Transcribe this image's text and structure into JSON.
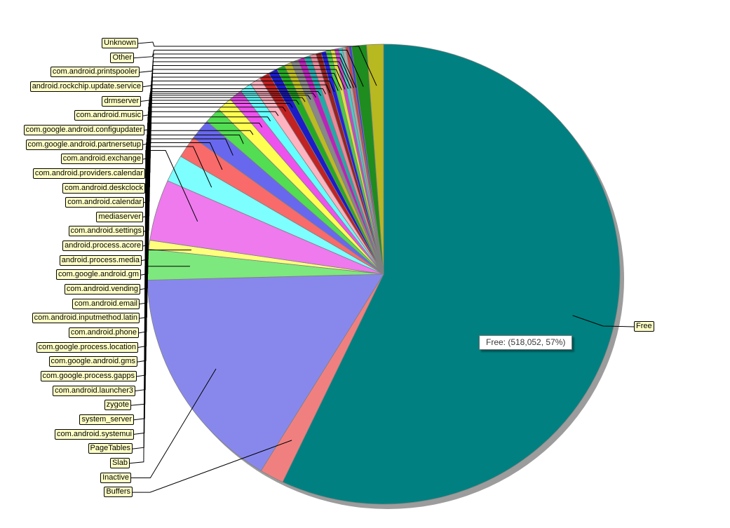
{
  "page": {
    "background": "#ffffff"
  },
  "chart_data": {
    "type": "pie",
    "title": "",
    "direction": "clockwise",
    "start_angle_deg": 0,
    "legend_position": "left-callouts-with-leader-lines",
    "pct_estimated_from_pixels": true,
    "tooltip_text": "Free: (518,052, 57%)",
    "free_value_display": "518,052",
    "free_pct_display": "57%",
    "colors": {
      "callout_bg": "#ffffc6",
      "callout_border": "#000000",
      "leader_line": "#000000",
      "slice_border": "#808080",
      "shadow": "#9c9c9c",
      "tooltip_bg": "#ffffff",
      "tooltip_border": "#707070",
      "background": "#ffffff"
    },
    "slices": [
      {
        "label": "Free",
        "pct": 57.0,
        "color": "#008080",
        "callout_side": "right"
      },
      {
        "label": "Buffers",
        "pct": 1.65,
        "color": "#f08080",
        "callout_side": "left"
      },
      {
        "label": "Inactive",
        "pct": 15.9,
        "color": "#8888ec",
        "callout_side": "left"
      },
      {
        "label": "Slab",
        "pct": 2.15,
        "color": "#7de87d",
        "callout_side": "left"
      },
      {
        "label": "PageTables",
        "pct": 0.62,
        "color": "#ffff7d",
        "callout_side": "left"
      },
      {
        "label": "com.android.systemui",
        "pct": 4.3,
        "color": "#ee7aee",
        "callout_side": "left"
      },
      {
        "label": "system_server",
        "pct": 1.9,
        "color": "#7dffff",
        "callout_side": "left"
      },
      {
        "label": "zygote",
        "pct": 1.55,
        "color": "#f96a6a",
        "callout_side": "left"
      },
      {
        "label": "com.android.launcher3",
        "pct": 1.45,
        "color": "#6868ee",
        "callout_side": "left"
      },
      {
        "label": "com.google.process.gapps",
        "pct": 1.15,
        "color": "#52dd52",
        "callout_side": "left"
      },
      {
        "label": "com.google.android.gms",
        "pct": 1.05,
        "color": "#ffff52",
        "callout_side": "left"
      },
      {
        "label": "com.google.process.location",
        "pct": 0.9,
        "color": "#ee52ee",
        "callout_side": "left"
      },
      {
        "label": "com.android.phone",
        "pct": 0.82,
        "color": "#66ffff",
        "callout_side": "left"
      },
      {
        "label": "com.android.inputmethod.latin",
        "pct": 0.75,
        "color": "#ffb3c1",
        "callout_side": "left"
      },
      {
        "label": "com.android.email",
        "pct": 0.68,
        "color": "#c22222",
        "callout_side": "left"
      },
      {
        "label": "com.android.vending",
        "pct": 0.62,
        "color": "#1c1cc8",
        "callout_side": "left"
      },
      {
        "label": "com.google.android.gm",
        "pct": 0.56,
        "color": "#22aa22",
        "callout_side": "left"
      },
      {
        "label": "android.process.media",
        "pct": 0.52,
        "color": "#bbbb22",
        "callout_side": "left"
      },
      {
        "label": "android.process.acore",
        "pct": 0.48,
        "color": "#888888",
        "callout_side": "left"
      },
      {
        "label": "com.android.settings",
        "pct": 0.45,
        "color": "#bb22bb",
        "callout_side": "left"
      },
      {
        "label": "mediaserver",
        "pct": 0.42,
        "color": "#22aaaa",
        "callout_side": "left"
      },
      {
        "label": "com.android.calendar",
        "pct": 0.4,
        "color": "#ee8899",
        "callout_side": "left"
      },
      {
        "label": "com.android.deskclock",
        "pct": 0.37,
        "color": "#992222",
        "callout_side": "left"
      },
      {
        "label": "com.android.providers.calendar",
        "pct": 0.34,
        "color": "#2222dd",
        "callout_side": "left"
      },
      {
        "label": "com.android.exchange",
        "pct": 0.31,
        "color": "#44cc44",
        "callout_side": "left"
      },
      {
        "label": "com.google.android.partnersetup",
        "pct": 0.29,
        "color": "#dddd44",
        "callout_side": "left"
      },
      {
        "label": "com.google.android.configupdater",
        "pct": 0.27,
        "color": "#cc44cc",
        "callout_side": "left"
      },
      {
        "label": "com.android.music",
        "pct": 0.25,
        "color": "#44cccc",
        "callout_side": "left"
      },
      {
        "label": "drmserver",
        "pct": 0.23,
        "color": "#aaaaaa",
        "callout_side": "left"
      },
      {
        "label": "android.rockchip.update.service",
        "pct": 0.21,
        "color": "#cc4444",
        "callout_side": "left"
      },
      {
        "label": "com.android.printspooler",
        "pct": 0.19,
        "color": "#4444cc",
        "callout_side": "left"
      },
      {
        "label": "Other",
        "pct": 1.02,
        "color": "#1e8c1e",
        "callout_side": "left"
      },
      {
        "label": "Unknown",
        "pct": 1.15,
        "color": "#b8b820",
        "callout_side": "left"
      }
    ]
  }
}
